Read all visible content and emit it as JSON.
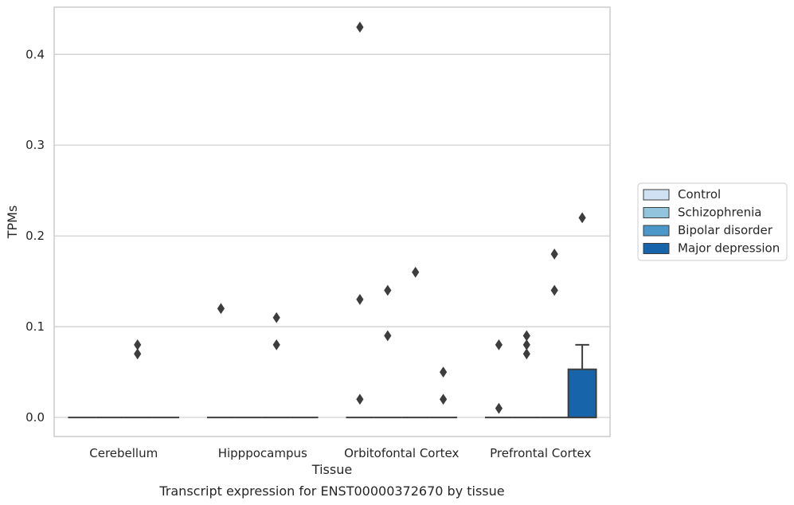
{
  "chart_data": {
    "type": "box",
    "title": "",
    "caption": "Transcript expression for ENST00000372670 by tissue",
    "xlabel": "Tissue",
    "ylabel": "TPMs",
    "ylim": [
      -0.021,
      0.452
    ],
    "yticks": [
      0.0,
      0.1,
      0.2,
      0.3,
      0.4
    ],
    "ytick_labels": [
      "0.0",
      "0.1",
      "0.2",
      "0.3",
      "0.4"
    ],
    "grid": "horizontal",
    "legend_position": "right",
    "categories": [
      "Cerebellum",
      "Hipppocampus",
      "Orbitofontal Cortex",
      "Prefrontal Cortex"
    ],
    "series": [
      {
        "name": "Control",
        "color": "#cfe1f2"
      },
      {
        "name": "Schizophrenia",
        "color": "#93c4de"
      },
      {
        "name": "Bipolar disorder",
        "color": "#4b97c9"
      },
      {
        "name": "Major depression",
        "color": "#1764ab"
      }
    ],
    "boxes": [
      {
        "category": "Cerebellum",
        "series": "Control",
        "q1": 0,
        "median": 0,
        "q3": 0,
        "whisker_low": 0,
        "whisker_high": 0,
        "outliers": []
      },
      {
        "category": "Cerebellum",
        "series": "Schizophrenia",
        "q1": 0,
        "median": 0,
        "q3": 0,
        "whisker_low": 0,
        "whisker_high": 0,
        "outliers": []
      },
      {
        "category": "Cerebellum",
        "series": "Bipolar disorder",
        "q1": 0,
        "median": 0,
        "q3": 0,
        "whisker_low": 0,
        "whisker_high": 0,
        "outliers": [
          0.08,
          0.07
        ]
      },
      {
        "category": "Cerebellum",
        "series": "Major depression",
        "q1": 0,
        "median": 0,
        "q3": 0,
        "whisker_low": 0,
        "whisker_high": 0,
        "outliers": []
      },
      {
        "category": "Hipppocampus",
        "series": "Control",
        "q1": 0,
        "median": 0,
        "q3": 0,
        "whisker_low": 0,
        "whisker_high": 0,
        "outliers": [
          0.12
        ]
      },
      {
        "category": "Hipppocampus",
        "series": "Schizophrenia",
        "q1": 0,
        "median": 0,
        "q3": 0,
        "whisker_low": 0,
        "whisker_high": 0,
        "outliers": []
      },
      {
        "category": "Hipppocampus",
        "series": "Bipolar disorder",
        "q1": 0,
        "median": 0,
        "q3": 0,
        "whisker_low": 0,
        "whisker_high": 0,
        "outliers": [
          0.11,
          0.08
        ]
      },
      {
        "category": "Hipppocampus",
        "series": "Major depression",
        "q1": 0,
        "median": 0,
        "q3": 0,
        "whisker_low": 0,
        "whisker_high": 0,
        "outliers": []
      },
      {
        "category": "Orbitofontal Cortex",
        "series": "Control",
        "q1": 0,
        "median": 0,
        "q3": 0,
        "whisker_low": 0,
        "whisker_high": 0,
        "outliers": [
          0.43,
          0.13,
          0.02
        ]
      },
      {
        "category": "Orbitofontal Cortex",
        "series": "Schizophrenia",
        "q1": 0,
        "median": 0,
        "q3": 0,
        "whisker_low": 0,
        "whisker_high": 0,
        "outliers": [
          0.14,
          0.09
        ]
      },
      {
        "category": "Orbitofontal Cortex",
        "series": "Bipolar disorder",
        "q1": 0,
        "median": 0,
        "q3": 0,
        "whisker_low": 0,
        "whisker_high": 0,
        "outliers": [
          0.16
        ]
      },
      {
        "category": "Orbitofontal Cortex",
        "series": "Major depression",
        "q1": 0,
        "median": 0,
        "q3": 0,
        "whisker_low": 0,
        "whisker_high": 0,
        "outliers": [
          0.05,
          0.02
        ]
      },
      {
        "category": "Prefrontal Cortex",
        "series": "Control",
        "q1": 0,
        "median": 0,
        "q3": 0,
        "whisker_low": 0,
        "whisker_high": 0,
        "outliers": [
          0.08,
          0.01
        ]
      },
      {
        "category": "Prefrontal Cortex",
        "series": "Schizophrenia",
        "q1": 0,
        "median": 0,
        "q3": 0,
        "whisker_low": 0,
        "whisker_high": 0,
        "outliers": [
          0.09,
          0.08,
          0.07
        ]
      },
      {
        "category": "Prefrontal Cortex",
        "series": "Bipolar disorder",
        "q1": 0,
        "median": 0,
        "q3": 0,
        "whisker_low": 0,
        "whisker_high": 0,
        "outliers": [
          0.18,
          0.14
        ]
      },
      {
        "category": "Prefrontal Cortex",
        "series": "Major depression",
        "q1": 0,
        "median": 0,
        "q3": 0.053,
        "whisker_low": 0,
        "whisker_high": 0.08,
        "outliers": [
          0.22
        ]
      }
    ]
  }
}
